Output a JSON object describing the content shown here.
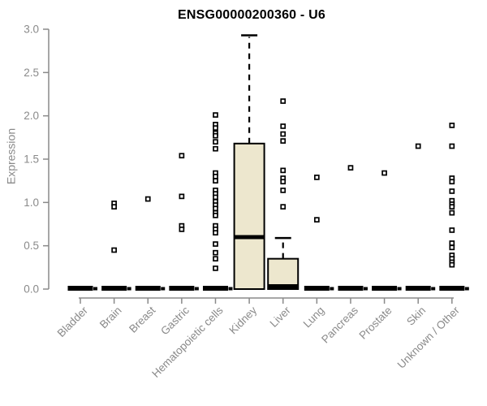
{
  "title": "ENSG00000200360 - U6",
  "chart_data": {
    "type": "boxplot",
    "title": "ENSG00000200360 - U6",
    "ylabel": "Expression",
    "xlabel": "",
    "ylim": [
      0.0,
      3.0
    ],
    "yticks": [
      0.0,
      0.5,
      1.0,
      1.5,
      2.0,
      2.5,
      3.0
    ],
    "grid": false,
    "legend": "none",
    "categories": [
      {
        "label": "Bladder",
        "box": {
          "q1": 0,
          "median": 0,
          "q3": 0,
          "whisker_low": 0,
          "whisker_high": 0
        },
        "points_at_zero": true,
        "outliers": []
      },
      {
        "label": "Brain",
        "box": {
          "q1": 0,
          "median": 0,
          "q3": 0,
          "whisker_low": 0,
          "whisker_high": 0
        },
        "points_at_zero": true,
        "outliers": [
          0.99,
          0.95,
          0.45
        ]
      },
      {
        "label": "Breast",
        "box": {
          "q1": 0,
          "median": 0,
          "q3": 0,
          "whisker_low": 0,
          "whisker_high": 0
        },
        "points_at_zero": true,
        "outliers": [
          1.04
        ]
      },
      {
        "label": "Gastric",
        "box": {
          "q1": 0,
          "median": 0,
          "q3": 0,
          "whisker_low": 0,
          "whisker_high": 0
        },
        "points_at_zero": true,
        "outliers": [
          1.54,
          1.07,
          0.73,
          0.69
        ]
      },
      {
        "label": "Hematopoietic cells",
        "box": {
          "q1": 0,
          "median": 0,
          "q3": 0,
          "whisker_low": 0,
          "whisker_high": 0
        },
        "points_at_zero": true,
        "outliers": [
          2.01,
          1.9,
          1.86,
          1.8,
          1.77,
          1.7,
          1.62,
          1.34,
          1.3,
          1.25,
          1.14,
          1.1,
          1.06,
          1.01,
          0.97,
          0.93,
          0.88,
          0.85,
          0.73,
          0.69,
          0.65,
          0.52,
          0.42,
          0.35,
          0.24
        ]
      },
      {
        "label": "Kidney",
        "box": {
          "q1": 0,
          "median": 0.6,
          "q3": 1.68,
          "whisker_low": 0,
          "whisker_high": 2.93
        },
        "points_at_zero": false,
        "outliers": []
      },
      {
        "label": "Liver",
        "box": {
          "q1": 0,
          "median": 0.02,
          "q3": 0.35,
          "whisker_low": 0,
          "whisker_high": 0.59
        },
        "points_at_zero": false,
        "outliers": [
          2.17,
          1.88,
          1.79,
          1.71,
          1.37,
          1.28,
          1.24,
          1.14,
          0.95
        ]
      },
      {
        "label": "Lung",
        "box": {
          "q1": 0,
          "median": 0,
          "q3": 0,
          "whisker_low": 0,
          "whisker_high": 0
        },
        "points_at_zero": true,
        "outliers": [
          1.29,
          0.8
        ]
      },
      {
        "label": "Pancreas",
        "box": {
          "q1": 0,
          "median": 0,
          "q3": 0,
          "whisker_low": 0,
          "whisker_high": 0
        },
        "points_at_zero": true,
        "outliers": [
          1.4
        ]
      },
      {
        "label": "Prostate",
        "box": {
          "q1": 0,
          "median": 0,
          "q3": 0,
          "whisker_low": 0,
          "whisker_high": 0
        },
        "points_at_zero": true,
        "outliers": [
          1.34
        ]
      },
      {
        "label": "Skin",
        "box": {
          "q1": 0,
          "median": 0,
          "q3": 0,
          "whisker_low": 0,
          "whisker_high": 0
        },
        "points_at_zero": true,
        "outliers": [
          1.65
        ]
      },
      {
        "label": "Unknown / Other",
        "box": {
          "q1": 0,
          "median": 0,
          "q3": 0,
          "whisker_low": 0,
          "whisker_high": 0
        },
        "points_at_zero": true,
        "outliers": [
          1.89,
          1.65,
          1.28,
          1.24,
          1.13,
          1.02,
          0.98,
          0.95,
          0.88,
          0.68,
          0.53,
          0.48,
          0.39,
          0.35,
          0.31,
          0.28
        ]
      }
    ],
    "colors": {
      "box_fill": "#EDE7CE",
      "box_border": "#000000",
      "median": "#000000",
      "whisker": "#000000",
      "outlier_fill": "#FFFFFF",
      "outlier_border": "#000000",
      "axis": "#8A8A8A",
      "title": "#000000",
      "background": "#FFFFFF"
    }
  }
}
